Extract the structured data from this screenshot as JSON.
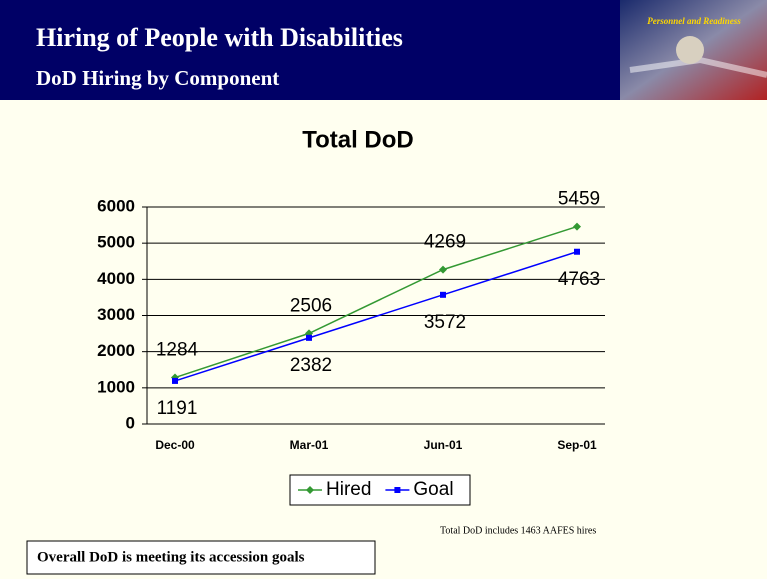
{
  "header": {
    "title": "Hiring of People with Disabilities",
    "subtitle": "DoD Hiring by Component",
    "logo_text": "Personnel and Readiness"
  },
  "chart_data": {
    "type": "line",
    "title": "Total DoD",
    "categories": [
      "Dec-00",
      "Mar-01",
      "Jun-01",
      "Sep-01"
    ],
    "series": [
      {
        "name": "Hired",
        "color": "#339933",
        "values": [
          1284,
          2506,
          4269,
          5459
        ]
      },
      {
        "name": "Goal",
        "color": "#0000ff",
        "values": [
          1191,
          2382,
          3572,
          4763
        ]
      }
    ],
    "ylim": [
      0,
      6000
    ],
    "yticks": [
      0,
      1000,
      2000,
      3000,
      4000,
      5000,
      6000
    ],
    "grid": true,
    "legend": "bottom"
  },
  "footnote": "Total DoD includes 1463 AAFES hires",
  "callout": "Overall DoD is meeting its accession goals"
}
